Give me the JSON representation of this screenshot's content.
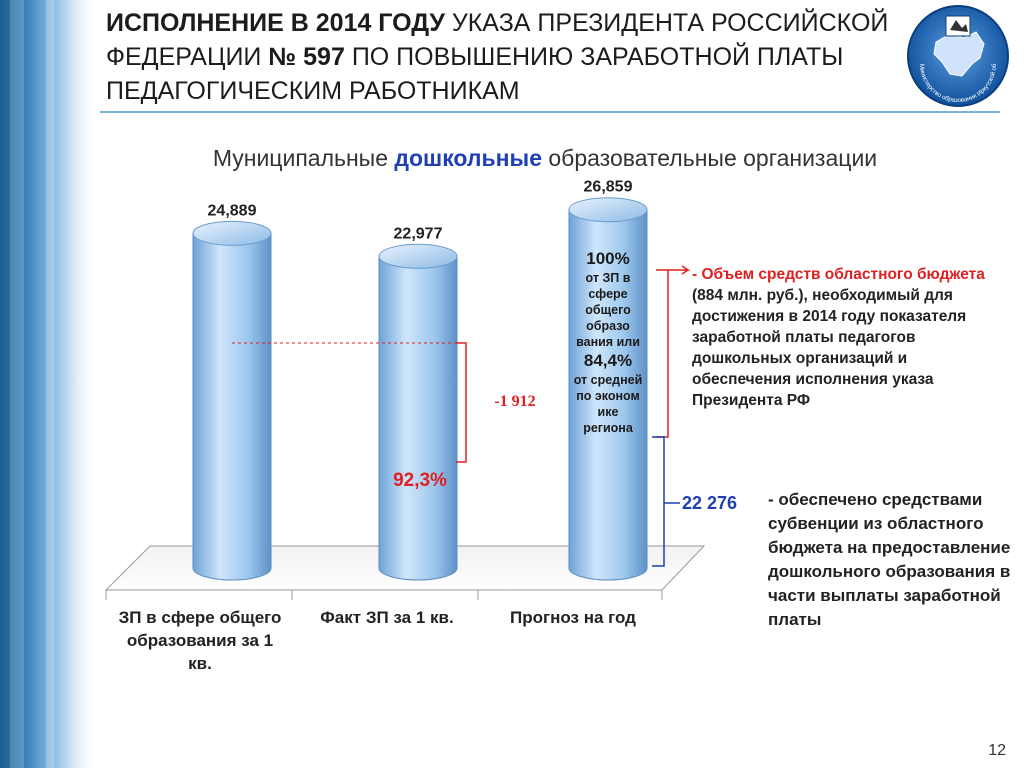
{
  "title": {
    "part1_bold": "ИСПОЛНЕНИЕ В 2014 ГОДУ",
    "part2": " УКАЗА ПРЕЗИДЕНТА РОССИЙСКОЙ ФЕДЕРАЦИИ ",
    "part3_bold": "№ 597",
    "part4": " ПО ПОВЫШЕНИЮ ЗАРАБОТНОЙ ПЛАТЫ ПЕДАГОГИЧЕСКИМ РАБОТНИКАМ"
  },
  "logo": {
    "text": "Министерство образования Иркутской области",
    "icon": "irkutsk-emblem-icon"
  },
  "subtitle": {
    "before": "Муниципальные ",
    "highlight": "дошкольные",
    "after": " образовательные организации"
  },
  "chart_data": {
    "type": "bar",
    "categories": [
      "ЗП в сфере общего образования за 1 кв.",
      "Факт ЗП за 1 кв.",
      "Прогноз на год"
    ],
    "values": [
      24.889,
      22.977,
      26.859
    ],
    "value_labels": [
      "24,889",
      "22,977",
      "26,859"
    ],
    "ylim": [
      0,
      30
    ],
    "difference_label": "-1 912",
    "bar2_percent": "92,3%",
    "bar3_text": {
      "pct1": "100%",
      "line1": "от ЗП в сфере общего образо вания или",
      "pct2": "84,4%",
      "line2": "от средней по эконом ике региона"
    },
    "subvention_value": 22.276,
    "subvention_label": "22 276"
  },
  "right_note": {
    "dash": "- ",
    "red": "Объем средств областного бюджета",
    "rest": " (884 млн. руб.), необходимый для достижения в 2014 году показателя заработной платы педагогов дошкольных организаций и обеспечения исполнения указа Президента РФ"
  },
  "subvention_note": "- обеспечено средствами субвенции из областного бюджета на предоставление дошкольного образования в части выплаты заработной платы",
  "colors": {
    "bar": "#8fbde6",
    "accent_red": "#e02020",
    "accent_blue": "#1f3fb4",
    "highlight": "#1f3fb4"
  },
  "page_number": "12"
}
